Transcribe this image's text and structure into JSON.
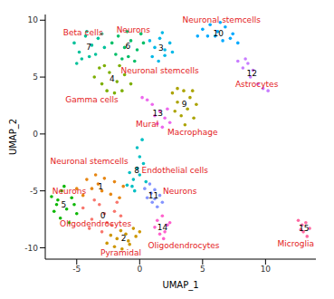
{
  "chart_data": {
    "type": "scatter",
    "x_label": "UMAP_1",
    "y_label": "UMAP_2",
    "xlim": [
      -7.5,
      14
    ],
    "ylim": [
      -11,
      10.5
    ],
    "xticks": [
      -5,
      0,
      5,
      10
    ],
    "yticks": [
      -10,
      -5,
      0,
      5,
      10
    ],
    "grid": false,
    "series": [
      {
        "name": "0",
        "color": "#F8766D",
        "x": [
          -4.5,
          -3.8,
          -3.2,
          -2.6,
          -2.0,
          -1.5,
          -4.0,
          -3.0,
          -2.2,
          -3.6,
          -2.8,
          -1.8
        ],
        "y": [
          -6.5,
          -7.5,
          -6.2,
          -7.8,
          -6.8,
          -7.2,
          -8.3,
          -8.6,
          -8.0,
          -5.8,
          -7.0,
          -6.0
        ]
      },
      {
        "name": "1",
        "color": "#E68613",
        "x": [
          -5,
          -4.2,
          -3.5,
          -2.8,
          -2.0,
          -1.3,
          -4.5,
          -3.8,
          -3.0,
          -2.3,
          -1.6,
          -3.3
        ],
        "y": [
          -4.8,
          -4.0,
          -3.6,
          -3.9,
          -4.2,
          -4.6,
          -5.4,
          -4.8,
          -5.0,
          -5.3,
          -5.6,
          -4.4
        ]
      },
      {
        "name": "2",
        "color": "#CD9600",
        "x": [
          -2.6,
          -2,
          -1.4,
          -0.8,
          -0.3,
          -1.8,
          -1.1,
          -0.5,
          -2.3,
          -1.5,
          -0.9,
          0
        ],
        "y": [
          -9.6,
          -9.9,
          -10.1,
          -9.7,
          -9.0,
          -9.2,
          -8.8,
          -8.3,
          -8.9,
          -8.5,
          -9.4,
          -8.6
        ]
      },
      {
        "name": "3",
        "color": "#00B8E7",
        "x": [
          0.8,
          1.2,
          1.6,
          2.0,
          2.4,
          1.0,
          1.5,
          2.0,
          2.6,
          1.8
        ],
        "y": [
          8.2,
          7.6,
          8.4,
          7.4,
          8.0,
          6.8,
          6.4,
          6.9,
          7.2,
          8.9
        ]
      },
      {
        "name": "4",
        "color": "#7CAE00",
        "x": [
          -3.6,
          -3.0,
          -2.4,
          -1.8,
          -1.2,
          -0.7,
          -3.2,
          -2.6,
          -2.0,
          -1.4,
          -2.8,
          -1.6
        ],
        "y": [
          5.0,
          4.4,
          5.4,
          4.6,
          5.2,
          4.4,
          5.8,
          3.8,
          3.6,
          3.8,
          6.0,
          6.0
        ]
      },
      {
        "name": "5",
        "color": "#0CB702",
        "x": [
          -7,
          -6.6,
          -6.2,
          -5.8,
          -5.4,
          -5.0,
          -6.8,
          -6.3,
          -5.6,
          -6.0,
          -5.2,
          -6.5
        ],
        "y": [
          -5.5,
          -6.2,
          -5.0,
          -6.6,
          -5.6,
          -7.0,
          -6.8,
          -7.4,
          -7.8,
          -4.6,
          -6.2,
          -5.8
        ]
      },
      {
        "name": "6",
        "color": "#00BE67",
        "x": [
          -2.2,
          -1.7,
          -1.2,
          -0.7,
          -0.2,
          0.3,
          -1.9,
          -1.4,
          -0.9,
          -0.4,
          -1.0,
          0.1
        ],
        "y": [
          8.0,
          8.6,
          7.6,
          8.2,
          7.4,
          8.0,
          7.0,
          6.6,
          6.8,
          6.4,
          9.0,
          8.8
        ]
      },
      {
        "name": "7",
        "color": "#00C19A",
        "x": [
          -5.2,
          -4.8,
          -4.3,
          -3.8,
          -3.3,
          -2.8,
          -4.6,
          -4.0,
          -3.5,
          -5.0,
          -3.0,
          -4.2
        ],
        "y": [
          8.0,
          7.2,
          8.6,
          7.8,
          8.4,
          7.6,
          6.6,
          6.8,
          7.0,
          6.2,
          8.8,
          9.0
        ]
      },
      {
        "name": "8",
        "color": "#00BFC4",
        "x": [
          -1,
          -0.5,
          0,
          0.5,
          -0.8,
          -0.2,
          0.3,
          -0.4,
          0,
          -0.2,
          0.2,
          -0.6
        ],
        "y": [
          -4.5,
          -4.0,
          -3.6,
          -4.2,
          -3.4,
          -3.0,
          -2.6,
          -5.0,
          -2.0,
          -1.2,
          -0.5,
          -4.6
        ]
      },
      {
        "name": "9",
        "color": "#ABA300",
        "x": [
          2.6,
          3.0,
          3.5,
          4.0,
          4.5,
          2.8,
          3.3,
          3.8,
          4.3,
          3.0,
          3.6,
          4.2
        ],
        "y": [
          3.6,
          2.8,
          3.8,
          3.2,
          2.6,
          2.0,
          1.6,
          2.2,
          1.4,
          4.0,
          0.8,
          3.8
        ]
      },
      {
        "name": "10",
        "color": "#00A9FF",
        "x": [
          5,
          5.6,
          6.2,
          6.8,
          7.4,
          6.0,
          6.6,
          7.2,
          5.4,
          6.4,
          7.8,
          4.6
        ],
        "y": [
          9.2,
          9.6,
          9.0,
          9.4,
          8.8,
          8.6,
          8.2,
          8.4,
          8.6,
          9.8,
          8.0,
          8.6
        ]
      },
      {
        "name": "11",
        "color": "#8494FF",
        "x": [
          0.4,
          0.8,
          1.2,
          1.6,
          0.6,
          1.0,
          1.4,
          0.9,
          1.8,
          1.2
        ],
        "y": [
          -4.8,
          -4.4,
          -4.9,
          -5.4,
          -5.6,
          -6.0,
          -6.4,
          -5.2,
          -6.0,
          -5.7
        ]
      },
      {
        "name": "12",
        "color": "#C77CFF",
        "x": [
          7.8,
          8.2,
          8.6,
          9.0,
          8.4,
          8.8,
          9.4,
          9.8,
          10.2
        ],
        "y": [
          6.4,
          5.8,
          6.2,
          5.6,
          6.6,
          5.0,
          4.4,
          4.0,
          3.8
        ]
      },
      {
        "name": "13",
        "color": "#ED68ED",
        "x": [
          1.2,
          1.6,
          2.0,
          2.4,
          1.4,
          1.8,
          2.2,
          1.0,
          0.6,
          0.2
        ],
        "y": [
          1.6,
          2.0,
          1.4,
          1.0,
          0.9,
          0.6,
          2.2,
          2.6,
          3.0,
          3.2
        ]
      },
      {
        "name": "14",
        "color": "#FF61CC",
        "x": [
          1.4,
          1.8,
          2.2,
          2.0,
          1.6,
          2.4,
          1.9,
          1.2
        ],
        "y": [
          -7.6,
          -7.2,
          -8.0,
          -8.6,
          -8.8,
          -7.8,
          -9.2,
          -8.2
        ]
      },
      {
        "name": "15",
        "color": "#FF68A1",
        "x": [
          12.6,
          12.9,
          13.2,
          13.5,
          13.0,
          12.8,
          13.3
        ],
        "y": [
          -7.6,
          -8.0,
          -7.8,
          -8.3,
          -8.6,
          -8.4,
          -9.0
        ]
      }
    ],
    "annotations": [
      {
        "text": "Beta cells",
        "x": -4.5,
        "y": 8.9
      },
      {
        "text": "Neurons",
        "x": -0.5,
        "y": 9.2
      },
      {
        "text": "Neuronal stemcells",
        "x": 6.5,
        "y": 10.0
      },
      {
        "text": "Neuronal stemcells",
        "x": 1.6,
        "y": 5.6
      },
      {
        "text": "Astrocytes",
        "x": 9.3,
        "y": 4.4
      },
      {
        "text": "Gamma cells",
        "x": -3.8,
        "y": 3.0
      },
      {
        "text": "Mural",
        "x": 0.6,
        "y": 0.9
      },
      {
        "text": "Macrophage",
        "x": 4.2,
        "y": 0.2
      },
      {
        "text": "Neuronal stemcells",
        "x": -4.0,
        "y": -2.4
      },
      {
        "text": "Endothelial cells",
        "x": 2.8,
        "y": -3.2
      },
      {
        "text": "Neurons",
        "x": 3.2,
        "y": -5.0
      },
      {
        "text": "Neurons",
        "x": -5.6,
        "y": -5.0
      },
      {
        "text": "Oligodendrocytes",
        "x": -3.5,
        "y": -7.9
      },
      {
        "text": "Pyramidal",
        "x": -1.5,
        "y": -10.4
      },
      {
        "text": "Oligodendrocytes",
        "x": 3.5,
        "y": -9.8
      },
      {
        "text": "Microglia",
        "x": 12.4,
        "y": -9.6
      }
    ]
  }
}
